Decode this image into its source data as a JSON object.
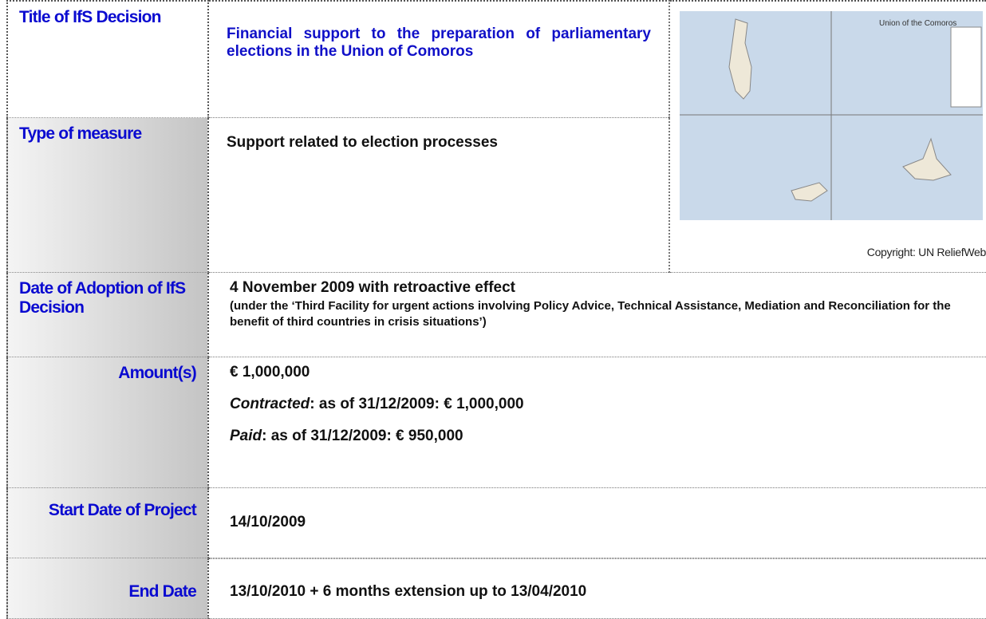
{
  "rows": [
    {
      "label": "Title of IfS Decision",
      "text": "Financial support to the preparation of parliamentary elections in the Union of Comoros"
    },
    {
      "label": "Type of measure",
      "text": "Support related to election processes"
    },
    {
      "label": "Date of Adoption of IfS Decision",
      "text": "4 November 2009 with retroactive effect",
      "note": "(under the ‘Third Facility for urgent actions involving Policy Advice, Technical Assistance, Mediation and Reconciliation for the benefit of third countries in crisis situations’)"
    },
    {
      "label": "Amount(s)",
      "text": "€ 1,000,000",
      "contracted": {
        "label": "Contracted",
        "text": ": as of 31/12/2009: € 1,000,000"
      },
      "paid": {
        "label": "Paid",
        "text": ": as of 31/12/2009: € 950,000"
      }
    },
    {
      "label": "Start Date of Project",
      "text": "14/10/2009"
    },
    {
      "label": "End Date",
      "text": "13/10/2010 + 6 months extension up to 13/04/2010"
    }
  ],
  "map": {
    "title": "Union of the Comoros",
    "copyright": "Copyright: UN ReliefWeb"
  }
}
